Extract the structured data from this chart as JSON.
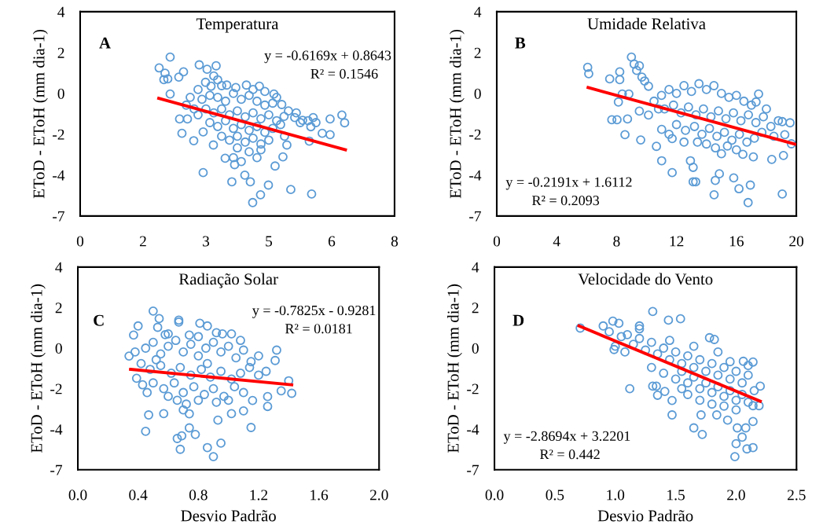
{
  "chart_data": [
    {
      "type": "scatter",
      "title": "Temperatura",
      "ylabel": "EToD - EToH (mm dia-1)",
      "annotations": [
        "A",
        "y = -0.6169x + 0.8643",
        "R² = 0.1546"
      ],
      "xlim": [
        0,
        8
      ],
      "xticks": [
        0,
        {
          "value": 1.6,
          "label": "2"
        },
        {
          "value": 3.2,
          "label": "3"
        },
        {
          "value": 4.8,
          "label": "5"
        },
        {
          "value": 6.4,
          "label": "6"
        },
        8
      ],
      "ylim": [
        -6.5,
        4
      ],
      "yticks": [
        4,
        {
          "value": 1.9,
          "label": "2"
        },
        {
          "value": -0.2,
          "label": "0"
        },
        {
          "value": -2.3,
          "label": "-2"
        },
        {
          "value": -4.4,
          "label": "-4"
        },
        {
          "value": -6.5,
          "label": "-7"
        }
      ],
      "series": [
        {
          "marker": "circle",
          "color": "#5b9bd5",
          "x": [
            2.29,
            2.01,
            2.16,
            2.13,
            2.23,
            2.51,
            2.63,
            3.03,
            3.23,
            3.46,
            2.29,
            2.53,
            2.73,
            2.59,
            2.89,
            3.13,
            3.13,
            3.39,
            3.69,
            3.93,
            3.86,
            4.19,
            4.33,
            4.39,
            4.59,
            4.79,
            4.96,
            5.36,
            5.89,
            6.66,
            6.73,
            6.36,
            6.36,
            6.16,
            5.93,
            5.87,
            5.83,
            5.66,
            5.46,
            5.19,
            5.26,
            5.16,
            4.93,
            5.13,
            4.56,
            4.23,
            3.96,
            3.73,
            3.19,
            3.33,
            3.1,
            3.3,
            3.5,
            3.7,
            3.9,
            4.1,
            4.3,
            4.5,
            4.7,
            4.9,
            3.2,
            3.4,
            3.6,
            3.8,
            4.0,
            4.2,
            4.4,
            4.6,
            4.8,
            5.0,
            3.3,
            3.5,
            3.7,
            3.9,
            4.1,
            4.3,
            4.5,
            4.7,
            4.9,
            5.1,
            3.6,
            3.8,
            4.0,
            4.2,
            4.4,
            4.6,
            4.8,
            4.0,
            4.3,
            4.6,
            2.7,
            2.9,
            2.8,
            3.0,
            3.0,
            5.3,
            5.5,
            5.6,
            5.8,
            6.0,
            3.5,
            3.4,
            3.6,
            4.4,
            4.7,
            5.0,
            3.9,
            4.1,
            4.5,
            5.2
          ],
          "values": [
            1.67,
            1.11,
            0.84,
            0.51,
            0.55,
            0.64,
            0.91,
            1.27,
            1.04,
            1.22,
            -0.23,
            -1.51,
            -1.51,
            -2.25,
            -2.63,
            -2.18,
            -4.27,
            -2.85,
            -3.53,
            -3.86,
            -4.74,
            -4.4,
            -4.74,
            -5.81,
            -5.41,
            -4.91,
            -3.93,
            -5.14,
            -5.37,
            -1.31,
            -1.71,
            -1.51,
            -2.32,
            -2.25,
            -1.44,
            -1.91,
            -2.65,
            -1.58,
            -1.44,
            -1.38,
            -2.85,
            -3.46,
            -0.23,
            -0.77,
            0.17,
            0.23,
            0.1,
            0.23,
            0.37,
            0.17,
            -0.5,
            -0.3,
            -0.4,
            -0.6,
            -0.2,
            -0.5,
            -0.3,
            -0.6,
            -0.8,
            -0.7,
            -1.0,
            -1.2,
            -1.0,
            -1.3,
            -1.1,
            -1.4,
            -1.2,
            -1.5,
            -1.3,
            -1.6,
            -1.7,
            -1.9,
            -1.6,
            -2.0,
            -1.8,
            -2.1,
            -1.9,
            -2.2,
            -2.0,
            -1.8,
            -2.4,
            -2.6,
            -2.4,
            -2.7,
            -2.5,
            -2.8,
            -2.6,
            -3.0,
            -3.2,
            -3.1,
            -0.8,
            -1.0,
            -0.4,
            -1.3,
            0.0,
            -1.1,
            -1.2,
            -1.7,
            -1.6,
            -1.7,
            0.5,
            0.7,
            0.2,
            0.0,
            -0.1,
            -0.4,
            -3.5,
            -3.7,
            -3.5,
            -2.4
          ]
        },
        {
          "type": "line",
          "color": "#ff0000",
          "x": [
            2.0,
            6.75
          ],
          "values": [
            -0.45,
            -3.1
          ]
        }
      ]
    },
    {
      "type": "scatter",
      "title": "Umidade Relativa",
      "ylabel": "EToD - EToH (mm dia-1)",
      "annotations": [
        "B",
        "y = -0.2191x + 1.6112",
        "R² = 0.2093"
      ],
      "xlim": [
        0,
        20
      ],
      "xticks": [
        0,
        4,
        8,
        12,
        16,
        20
      ],
      "ylim": [
        -6.5,
        4
      ],
      "yticks": [
        4,
        {
          "value": 1.9,
          "label": "2"
        },
        {
          "value": -0.2,
          "label": "0"
        },
        {
          "value": -2.3,
          "label": "-2"
        },
        {
          "value": -4.4,
          "label": "-4"
        },
        {
          "value": -6.5,
          "label": "-7"
        }
      ],
      "series": [
        {
          "marker": "circle",
          "color": "#5b9bd5",
          "x": [
            6.07,
            6.14,
            7.54,
            8.21,
            8.21,
            8.99,
            9.17,
            9.52,
            9.34,
            9.69,
            9.87,
            10.13,
            8.38,
            8.82,
            8.12,
            7.68,
            8.03,
            8.73,
            8.56,
            9.52,
            9.61,
            10.13,
            10.66,
            11.01,
            11.71,
            11.01,
            11.71,
            13.11,
            13.28,
            12.93,
            13.11,
            14.51,
            14.59,
            14.86,
            15.82,
            16.17,
            16.78,
            16.93,
            19.06,
            19.14,
            18.36,
            19.06,
            19.58,
            19.23,
            19.67,
            17.48,
            17.31,
            16.43,
            17.13,
            11.0,
            11.5,
            12.0,
            12.5,
            13.0,
            13.5,
            14.0,
            14.5,
            15.0,
            15.5,
            16.0,
            16.5,
            17.0,
            11.2,
            11.8,
            12.3,
            12.8,
            13.3,
            13.8,
            14.3,
            14.8,
            15.3,
            15.8,
            16.3,
            16.8,
            17.3,
            17.8,
            18.3,
            12.0,
            12.6,
            13.2,
            13.7,
            14.2,
            14.7,
            15.2,
            15.7,
            16.2,
            16.7,
            17.2,
            17.7,
            18.5,
            14.0,
            14.6,
            15.4,
            16.0,
            15.0,
            13.4,
            10.5,
            10.8,
            18.0,
            18.8,
            11.5,
            12.5
          ],
          "values": [
            1.14,
            0.81,
            0.55,
            0.91,
            0.51,
            1.67,
            1.31,
            1.22,
            0.98,
            0.64,
            0.44,
            0.17,
            -0.23,
            -0.23,
            -0.64,
            -1.55,
            -1.55,
            -1.51,
            -2.32,
            -1.11,
            -2.59,
            -1.31,
            -2.92,
            -3.66,
            -4.27,
            -2.05,
            -2.52,
            -4.74,
            -4.74,
            -3.66,
            -4.0,
            -5.41,
            -4.67,
            -4.33,
            -4.54,
            -5.1,
            -5.81,
            -4.91,
            -5.37,
            -3.39,
            -3.59,
            -1.65,
            -1.71,
            -2.32,
            -2.79,
            -0.23,
            -0.64,
            -3.33,
            -3.46,
            -0.3,
            0.0,
            -0.2,
            0.2,
            -0.1,
            0.3,
            0.0,
            0.2,
            -0.2,
            -0.4,
            -0.3,
            -0.6,
            -0.8,
            -1.0,
            -0.8,
            -1.2,
            -0.9,
            -1.3,
            -1.0,
            -1.4,
            -1.1,
            -1.5,
            -1.2,
            -1.6,
            -1.3,
            -1.7,
            -1.4,
            -1.9,
            -1.8,
            -2.1,
            -1.9,
            -2.3,
            -2.0,
            -2.4,
            -2.2,
            -2.6,
            -2.3,
            -2.7,
            -2.5,
            -2.2,
            -2.4,
            -2.8,
            -3.0,
            -2.9,
            -3.1,
            -3.3,
            -2.7,
            -0.6,
            -1.0,
            -1.0,
            -1.6,
            -2.3,
            -2.7
          ]
        },
        {
          "type": "line",
          "color": "#ff0000",
          "x": [
            6.1,
            19.9
          ],
          "values": [
            0.1,
            -2.8
          ]
        }
      ]
    },
    {
      "type": "scatter",
      "title": "Radiação Solar",
      "xlabel": "Desvio Padrão",
      "ylabel": "EToD - EToH (mm dia-1)",
      "annotations": [
        "C",
        "y = -0.7825x - 0.9281",
        "R² = 0.0181"
      ],
      "xlim": [
        0,
        2
      ],
      "xticks": [
        {
          "value": 0,
          "label": "0.0"
        },
        0.4,
        0.8,
        1.2,
        1.6,
        {
          "value": 2,
          "label": "2.0"
        }
      ],
      "ylim": [
        -6.5,
        4
      ],
      "yticks": [
        4,
        {
          "value": 1.9,
          "label": "2"
        },
        {
          "value": -0.2,
          "label": "0"
        },
        {
          "value": -2.3,
          "label": "-2"
        },
        {
          "value": -4.4,
          "label": "-4"
        },
        {
          "value": -6.5,
          "label": "-7"
        }
      ],
      "series": [
        {
          "marker": "circle",
          "color": "#5b9bd5",
          "x": [
            0.5,
            0.54,
            0.53,
            0.67,
            0.67,
            0.81,
            0.86,
            0.4,
            0.37,
            0.34,
            0.6,
            0.74,
            0.96,
            1.02,
            1.32,
            1.31,
            1.4,
            1.42,
            1.35,
            1.26,
            1.26,
            1.16,
            1.15,
            1.1,
            0.47,
            0.45,
            0.57,
            0.66,
            0.68,
            0.69,
            0.78,
            0.74,
            0.86,
            0.9,
            0.95,
            0.93,
            1.02,
            0.39,
            0.43,
            0.46,
            0.38,
            0.45,
            0.5,
            0.55,
            0.6,
            0.65,
            0.7,
            0.75,
            0.8,
            0.85,
            0.9,
            0.95,
            1.0,
            1.05,
            1.1,
            1.15,
            1.2,
            0.42,
            0.48,
            0.55,
            0.62,
            0.68,
            0.75,
            0.82,
            0.88,
            0.95,
            1.02,
            1.08,
            1.14,
            1.2,
            1.25,
            0.5,
            0.57,
            0.64,
            0.7,
            0.77,
            0.84,
            0.9,
            0.97,
            1.04,
            1.1,
            0.66,
            0.72,
            0.8,
            0.92,
            1.0,
            0.6,
            0.7,
            0.74,
            0.58,
            0.8,
            0.92,
            1.08,
            0.52,
            0.86
          ],
          "values": [
            1.72,
            1.33,
            0.88,
            1.25,
            1.15,
            1.09,
            0.95,
            0.95,
            0.48,
            -0.61,
            0.54,
            0.48,
            0.54,
            0.54,
            -0.3,
            -0.84,
            -1.89,
            -2.54,
            -2.41,
            -2.71,
            -3.22,
            -2.91,
            -4.31,
            -3.45,
            -3.66,
            -4.51,
            -3.59,
            -4.88,
            -5.44,
            -4.74,
            -4.67,
            -4.33,
            -5.35,
            -5.82,
            -5.12,
            -3.93,
            -3.59,
            -1.76,
            -2.1,
            -2.5,
            -0.4,
            -0.2,
            0.1,
            -0.5,
            -0.1,
            0.2,
            -0.4,
            0.0,
            -0.6,
            -0.2,
            0.1,
            -0.4,
            -0.1,
            -0.7,
            -0.3,
            -0.9,
            -0.6,
            -1.0,
            -1.3,
            -1.1,
            -1.5,
            -1.2,
            -1.6,
            -1.3,
            -1.7,
            -1.4,
            -1.8,
            -1.5,
            -1.2,
            -1.6,
            -1.4,
            -2.0,
            -2.3,
            -2.0,
            -2.5,
            -2.2,
            -2.6,
            -2.3,
            -2.7,
            -2.2,
            -2.5,
            -2.9,
            -3.1,
            -2.9,
            -3.0,
            -2.9,
            -2.7,
            -3.4,
            -3.6,
            0.5,
            0.4,
            0.6,
            0.2,
            -0.8,
            -1.0
          ]
        },
        {
          "type": "line",
          "color": "#ff0000",
          "x": [
            0.35,
            1.42
          ],
          "values": [
            -1.3,
            -2.1
          ]
        }
      ]
    },
    {
      "type": "scatter",
      "title": "Velocidade do Vento",
      "xlabel": "Desvio Padrão",
      "ylabel": "EToD - EToH (mm dia-1)",
      "annotations": [
        "D",
        "y = -2.8694x + 3.2201",
        "R² = 0.442"
      ],
      "xlim": [
        0,
        2.5
      ],
      "xticks": [
        {
          "value": 0,
          "label": "0.0"
        },
        0.5,
        {
          "value": 1,
          "label": "1.0"
        },
        1.5,
        {
          "value": 2,
          "label": "2.0"
        },
        2.5
      ],
      "ylim": [
        -6.5,
        4
      ],
      "yticks": [
        4,
        {
          "value": 1.9,
          "label": "2"
        },
        {
          "value": -0.2,
          "label": "0"
        },
        {
          "value": -2.3,
          "label": "-2"
        },
        {
          "value": -4.4,
          "label": "-4"
        },
        {
          "value": -6.5,
          "label": "-7"
        }
      ],
      "series": [
        {
          "marker": "circle",
          "color": "#5b9bd5",
          "x": [
            0.71,
            0.9,
            0.98,
            1.03,
            0.95,
            1.2,
            1.31,
            1.44,
            1.54,
            0.99,
            1.08,
            1.12,
            1.31,
            1.34,
            1.35,
            1.41,
            1.47,
            1.47,
            1.65,
            1.72,
            1.78,
            1.82,
            1.99,
            2.0,
            2.05,
            2.09,
            2.14,
            2.01,
            2.08,
            2.14,
            2.14,
            2.2,
            2.19,
            2.06,
            2.14,
            1.71,
            1.84,
            1.93,
            1.1,
            1.15,
            1.2,
            1.25,
            1.3,
            1.35,
            1.4,
            1.45,
            1.5,
            1.55,
            1.6,
            1.65,
            1.7,
            1.75,
            1.8,
            1.85,
            1.9,
            1.95,
            2.0,
            2.05,
            2.1,
            1.3,
            1.4,
            1.5,
            1.55,
            1.6,
            1.65,
            1.7,
            1.75,
            1.8,
            1.85,
            1.9,
            1.95,
            2.0,
            2.05,
            2.1,
            2.15,
            1.6,
            1.7,
            1.8,
            1.9,
            2.0,
            1.55,
            1.0,
            1.05,
            1.2,
            1.45,
            1.65,
            1.85,
            1.95,
            2.1
          ],
          "values": [
            0.84,
            0.95,
            1.2,
            1.09,
            0.65,
            0.95,
            1.7,
            1.25,
            1.32,
            -0.27,
            -0.4,
            -2.3,
            -2.17,
            -2.17,
            -2.64,
            -2.44,
            -3.66,
            -2.91,
            -4.33,
            -4.67,
            0.34,
            0.25,
            -5.82,
            -5.15,
            -4.81,
            -5.42,
            -5.35,
            -4.33,
            -4.33,
            -4.0,
            -3.18,
            -2.17,
            -3.18,
            -0.88,
            -0.92,
            -3.66,
            -3.66,
            -3.93,
            0.5,
            0.0,
            0.3,
            -0.3,
            0.1,
            -0.5,
            -0.2,
            -0.8,
            -0.4,
            -1.0,
            -0.6,
            -1.2,
            -0.8,
            -1.4,
            -1.0,
            -1.6,
            -1.2,
            -1.8,
            -1.4,
            -2.0,
            -1.6,
            -1.2,
            -1.5,
            -1.8,
            -1.4,
            -2.0,
            -1.7,
            -2.3,
            -2.0,
            -2.5,
            -2.2,
            -2.7,
            -2.4,
            -2.9,
            -2.6,
            -3.0,
            -2.4,
            -2.6,
            -2.9,
            -3.1,
            -3.2,
            -3.4,
            -2.3,
            -0.1,
            0.4,
            0.8,
            0.2,
            -0.1,
            -0.4,
            -0.9,
            -1.1
          ]
        },
        {
          "type": "line",
          "color": "#ff0000",
          "x": [
            0.7,
            2.2
          ],
          "values": [
            0.95,
            -2.95
          ]
        }
      ]
    }
  ]
}
